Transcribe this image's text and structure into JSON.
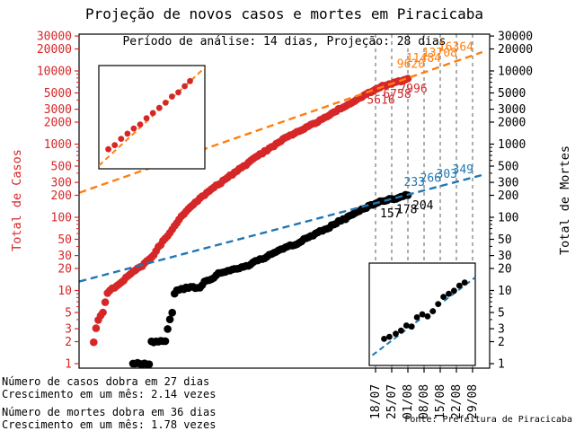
{
  "title": "Projeção de novos casos e mortes em Piracicaba",
  "subtitle": "Período de análise: 14 dias, Projeção: 28 dias",
  "footer": {
    "source": "Fonte: Prefeitura de Piracicaba"
  },
  "stats": {
    "cases_doubling": "Número de casos dobra em 27 dias",
    "cases_growth": "Crescimento em um mês: 2.14 vezes",
    "deaths_doubling": "Número de mortes dobra em 36 dias",
    "deaths_growth": "Crescimento em um mês: 1.78 vezes"
  },
  "axes": {
    "left_label": "Total de Casos",
    "right_label": "Total de Mortes",
    "left_color": "#d62728",
    "right_color": "#000000"
  },
  "chart_data": {
    "type": "scatter",
    "y_scale": "log",
    "title": "Projeção de novos casos e mortes em Piracicaba",
    "subtitle": "Período de análise: 14 dias, Projeção: 28 dias",
    "ylim": [
      0.87,
      32000
    ],
    "y_ticks": [
      1,
      2,
      3,
      5,
      10,
      20,
      30,
      50,
      100,
      200,
      300,
      500,
      1000,
      2000,
      3000,
      5000,
      10000,
      20000,
      30000
    ],
    "y_minor_mantissas": [
      4,
      6,
      7,
      8,
      9
    ],
    "x_tick_dates": [
      "18/07",
      "25/07",
      "01/08",
      "08/08",
      "15/08",
      "22/08",
      "29/08"
    ],
    "x_tick_days": [
      0,
      7,
      14,
      21,
      28,
      35,
      42
    ],
    "vline_color": "#8c8c8c",
    "series": {
      "cases": {
        "name": "Total de Casos",
        "color": "#d62728",
        "labeled_points": [
          {
            "date": "18/07",
            "day": 0,
            "value": 5616
          },
          {
            "date": "25/07",
            "day": 7,
            "value": 6758
          },
          {
            "date": "01/08",
            "day": 14,
            "value": 7996
          }
        ],
        "anchors": [
          [
            -122,
            2
          ],
          [
            -121,
            3
          ],
          [
            -120,
            4
          ],
          [
            -118,
            5
          ],
          [
            -117,
            7
          ],
          [
            -116,
            9
          ],
          [
            -115,
            10
          ],
          [
            -113,
            11
          ],
          [
            -111,
            12
          ],
          [
            -110,
            13
          ],
          [
            -109,
            14
          ],
          [
            -107,
            16
          ],
          [
            -105,
            18
          ],
          [
            -103,
            20
          ],
          [
            -101,
            22
          ],
          [
            -99,
            25
          ],
          [
            -96,
            30
          ],
          [
            -94,
            39
          ],
          [
            -92,
            47
          ],
          [
            -90,
            55
          ],
          [
            -88,
            69
          ],
          [
            -86,
            85
          ],
          [
            -84,
            105
          ],
          [
            -81,
            130
          ],
          [
            -78,
            160
          ],
          [
            -75,
            190
          ],
          [
            -73,
            220
          ],
          [
            -70,
            255
          ],
          [
            -67,
            295
          ],
          [
            -65,
            340
          ],
          [
            -62,
            390
          ],
          [
            -59,
            450
          ],
          [
            -56,
            520
          ],
          [
            -54,
            600
          ],
          [
            -51,
            690
          ],
          [
            -48,
            790
          ],
          [
            -45,
            900
          ],
          [
            -43,
            1020
          ],
          [
            -40,
            1150
          ],
          [
            -37,
            1300
          ],
          [
            -35,
            1400
          ],
          [
            -32,
            1550
          ],
          [
            -29,
            1750
          ],
          [
            -26,
            1950
          ],
          [
            -24,
            2150
          ],
          [
            -21,
            2400
          ],
          [
            -18,
            2700
          ],
          [
            -16,
            3000
          ],
          [
            -13,
            3350
          ],
          [
            -10,
            3750
          ],
          [
            -7,
            4200
          ],
          [
            -5,
            4650
          ],
          [
            -2,
            5200
          ],
          [
            0,
            5616
          ],
          [
            3,
            6150
          ],
          [
            7,
            6758
          ],
          [
            11,
            7350
          ],
          [
            14,
            7996
          ]
        ]
      },
      "deaths": {
        "name": "Total de Mortes",
        "color": "#000000",
        "labeled_points": [
          {
            "date": "18/07",
            "day": 0,
            "value": 157
          },
          {
            "date": "25/07",
            "day": 7,
            "value": 178
          },
          {
            "date": "01/08",
            "day": 14,
            "value": 204
          }
        ],
        "anchors": [
          [
            -105,
            1
          ],
          [
            -98,
            1
          ],
          [
            -97,
            2
          ],
          [
            -91,
            2
          ],
          [
            -90,
            3
          ],
          [
            -89,
            4
          ],
          [
            -88,
            5
          ],
          [
            -87,
            9
          ],
          [
            -86,
            10
          ],
          [
            -81,
            11
          ],
          [
            -76,
            11
          ],
          [
            -74,
            13
          ],
          [
            -71,
            14
          ],
          [
            -69,
            16
          ],
          [
            -68,
            17
          ],
          [
            -65,
            18
          ],
          [
            -62,
            19
          ],
          [
            -60,
            20
          ],
          [
            -58,
            21
          ],
          [
            -55,
            22
          ],
          [
            -53,
            24
          ],
          [
            -51,
            26
          ],
          [
            -48,
            28
          ],
          [
            -46,
            31
          ],
          [
            -44,
            33
          ],
          [
            -41,
            36
          ],
          [
            -39,
            39
          ],
          [
            -37,
            41
          ],
          [
            -34,
            43
          ],
          [
            -32,
            47
          ],
          [
            -30,
            52
          ],
          [
            -27,
            57
          ],
          [
            -25,
            62
          ],
          [
            -23,
            67
          ],
          [
            -20,
            73
          ],
          [
            -18,
            80
          ],
          [
            -16,
            88
          ],
          [
            -13,
            96
          ],
          [
            -11,
            105
          ],
          [
            -9,
            113
          ],
          [
            -7,
            122
          ],
          [
            -5,
            132
          ],
          [
            -3,
            142
          ],
          [
            -1,
            150
          ],
          [
            0,
            157
          ],
          [
            2,
            163
          ],
          [
            4,
            170
          ],
          [
            7,
            178
          ],
          [
            10,
            185
          ],
          [
            12,
            194
          ],
          [
            14,
            204
          ]
        ]
      },
      "cases_projection": {
        "color": "#ff7f0e",
        "style": "dashed",
        "doubling_days": 27,
        "monthly_factor": 2.14,
        "ref": {
          "day": 14,
          "value": 7996
        },
        "labeled_points": [
          {
            "date": "08/08",
            "day": 21,
            "value": 9620
          },
          {
            "date": "15/08",
            "day": 28,
            "value": 11484
          },
          {
            "date": "22/08",
            "day": 35,
            "value": 13708
          },
          {
            "date": "29/08",
            "day": 42,
            "value": 16364
          }
        ]
      },
      "deaths_projection": {
        "color": "#1f77b4",
        "style": "dashed",
        "doubling_days": 36,
        "monthly_factor": 1.78,
        "ref": {
          "day": 14,
          "value": 204
        },
        "labeled_points": [
          {
            "date": "08/08",
            "day": 21,
            "value": 233
          },
          {
            "date": "15/08",
            "day": 28,
            "value": 266
          },
          {
            "date": "22/08",
            "day": 35,
            "value": 303
          },
          {
            "date": "29/08",
            "day": 42,
            "value": 349
          }
        ]
      }
    },
    "insets": {
      "cases_window": {
        "point_color": "#d62728",
        "line_color": "#ff7f0e",
        "points_frac": [
          [
            0.09,
            0.81
          ],
          [
            0.15,
            0.77
          ],
          [
            0.21,
            0.71
          ],
          [
            0.27,
            0.66
          ],
          [
            0.33,
            0.61
          ],
          [
            0.39,
            0.57
          ],
          [
            0.45,
            0.51
          ],
          [
            0.51,
            0.46
          ],
          [
            0.57,
            0.41
          ],
          [
            0.63,
            0.36
          ],
          [
            0.69,
            0.3
          ],
          [
            0.75,
            0.26
          ],
          [
            0.81,
            0.2
          ],
          [
            0.86,
            0.15
          ]
        ],
        "line_frac": [
          [
            0.0,
            0.97
          ],
          [
            1.0,
            0.02
          ]
        ]
      },
      "deaths_window": {
        "point_color": "#000000",
        "line_color": "#1f77b4",
        "points_frac": [
          [
            0.14,
            0.74
          ],
          [
            0.19,
            0.72
          ],
          [
            0.25,
            0.69
          ],
          [
            0.3,
            0.66
          ],
          [
            0.35,
            0.61
          ],
          [
            0.4,
            0.62
          ],
          [
            0.45,
            0.53
          ],
          [
            0.5,
            0.5
          ],
          [
            0.55,
            0.52
          ],
          [
            0.6,
            0.47
          ],
          [
            0.65,
            0.4
          ],
          [
            0.7,
            0.33
          ],
          [
            0.75,
            0.3
          ],
          [
            0.8,
            0.27
          ],
          [
            0.85,
            0.22
          ],
          [
            0.9,
            0.19
          ]
        ],
        "line_frac": [
          [
            0.03,
            0.9
          ],
          [
            1.0,
            0.14
          ]
        ]
      }
    }
  }
}
